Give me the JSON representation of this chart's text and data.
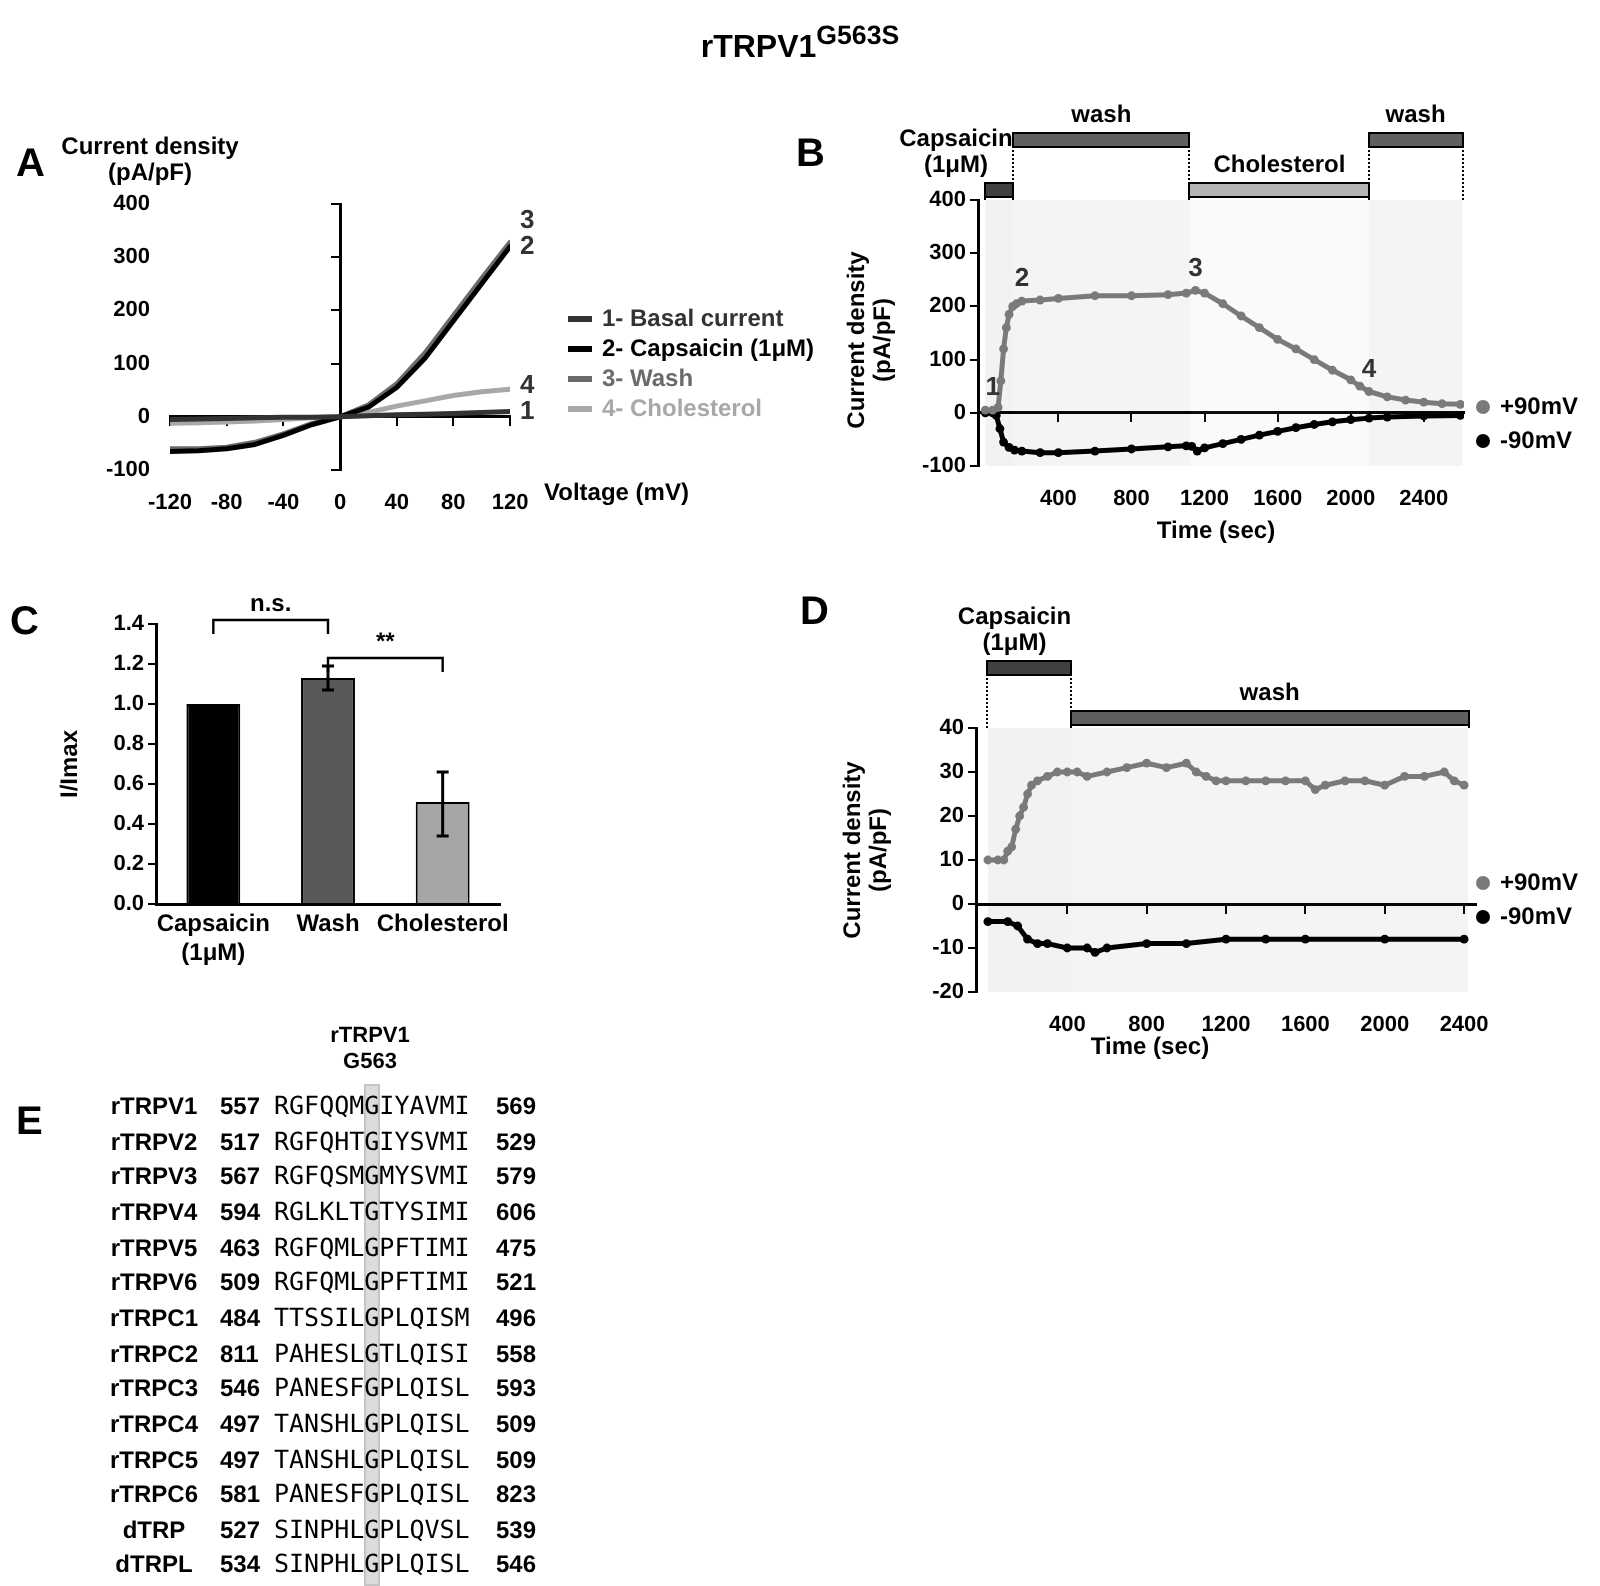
{
  "chart_data": [
    {
      "type": "other",
      "title": "rTRPV1$^{G563S}$"
    },
    {
      "type": "line",
      "xlabel": "Voltage (mV)",
      "ylabel": "Current density (pA/pF)",
      "x": [
        -120,
        -100,
        -80,
        -60,
        -40,
        -20,
        0,
        20,
        40,
        60,
        80,
        100,
        120
      ],
      "series": [
        {
          "name": "1- Basal current",
          "color": "#333333",
          "values": [
            -5,
            -4,
            -3,
            -2,
            -1,
            -1,
            0,
            2,
            4,
            5,
            6,
            8,
            10
          ]
        },
        {
          "name": "2- Capsaicin (1μM)",
          "color": "#000000",
          "values": [
            -65,
            -64,
            -60,
            -52,
            -35,
            -15,
            0,
            18,
            55,
            110,
            180,
            250,
            320
          ]
        },
        {
          "name": "3- Wash",
          "color": "#6b6b6b",
          "values": [
            -60,
            -60,
            -57,
            -48,
            -32,
            -13,
            0,
            22,
            62,
            120,
            190,
            260,
            328
          ]
        },
        {
          "name": "4- Cholesterol",
          "color": "#a8a8a8",
          "values": [
            -12,
            -11,
            -10,
            -8,
            -5,
            -2,
            0,
            8,
            20,
            30,
            40,
            47,
            52
          ]
        }
      ],
      "xlim": [
        -120,
        120
      ],
      "xticks": [
        -120,
        -80,
        -40,
        0,
        40,
        80,
        120
      ],
      "ylim": [
        -100,
        400
      ],
      "yticks": [
        -100,
        0,
        100,
        200,
        300,
        400
      ],
      "legend": "right",
      "marker": "none",
      "line_style": "solid",
      "annotations": [
        "A",
        {
          "text": "3",
          "x": 120,
          "y": 328
        },
        {
          "text": "2",
          "x": 120,
          "y": 320
        },
        {
          "text": "4",
          "x": 120,
          "y": 52
        },
        {
          "text": "1",
          "x": 120,
          "y": 10
        }
      ]
    },
    {
      "type": "line",
      "xlabel": "Time (sec)",
      "ylabel": "Current density (pA/pF)",
      "series": [
        {
          "name": "+90mV",
          "color": "#7a7a7a",
          "x": [
            0,
            40,
            70,
            85,
            100,
            115,
            130,
            150,
            170,
            200,
            300,
            400,
            600,
            800,
            1000,
            1100,
            1150,
            1200,
            1300,
            1400,
            1500,
            1600,
            1700,
            1800,
            1900,
            2000,
            2050,
            2100,
            2200,
            2300,
            2400,
            2500,
            2600
          ],
          "values": [
            5,
            5,
            10,
            60,
            120,
            160,
            185,
            200,
            205,
            210,
            212,
            215,
            220,
            220,
            222,
            225,
            230,
            225,
            205,
            182,
            160,
            138,
            120,
            100,
            80,
            62,
            50,
            40,
            30,
            24,
            20,
            17,
            16
          ]
        },
        {
          "name": "-90mV",
          "color": "#000000",
          "x": [
            0,
            40,
            60,
            80,
            100,
            130,
            160,
            200,
            300,
            400,
            600,
            800,
            1000,
            1100,
            1130,
            1160,
            1200,
            1300,
            1400,
            1500,
            1600,
            1700,
            1800,
            1900,
            2000,
            2100,
            2200,
            2400,
            2600
          ],
          "values": [
            0,
            0,
            -5,
            -30,
            -55,
            -65,
            -70,
            -72,
            -75,
            -75,
            -72,
            -68,
            -64,
            -62,
            -63,
            -72,
            -66,
            -58,
            -50,
            -42,
            -35,
            -28,
            -22,
            -17,
            -13,
            -10,
            -8,
            -6,
            -5
          ]
        }
      ],
      "xlim": [
        -40,
        2620
      ],
      "xticks": [
        400,
        800,
        1200,
        1600,
        2000,
        2400
      ],
      "ylim": [
        -100,
        400
      ],
      "yticks": [
        -100,
        0,
        100,
        200,
        300,
        400
      ],
      "legend": "right",
      "marker": "circle",
      "line_style": "solid",
      "bands": [
        {
          "axis": "x",
          "from": 0,
          "to": 150,
          "label": "Capsaicin (1μM)",
          "color": "#404040"
        },
        {
          "axis": "x",
          "from": 150,
          "to": 1120,
          "label": "wash",
          "color": "#5f5f5f"
        },
        {
          "axis": "x",
          "from": 1120,
          "to": 2100,
          "label": "Cholesterol",
          "color": "#b3b3b3"
        },
        {
          "axis": "x",
          "from": 2100,
          "to": 2610,
          "label": "wash",
          "color": "#5f5f5f"
        }
      ],
      "annotations": [
        "B",
        {
          "text": "1",
          "x": 40,
          "y": 5
        },
        {
          "text": "2",
          "x": 200,
          "y": 210
        },
        {
          "text": "3",
          "x": 1150,
          "y": 230
        },
        {
          "text": "4",
          "x": 2100,
          "y": 40
        }
      ]
    },
    {
      "type": "bar",
      "ylabel": "I/Imax",
      "categories": [
        "Capsaicin (1μM)",
        "Wash",
        "Cholesterol"
      ],
      "values": [
        1.0,
        1.13,
        0.51
      ],
      "colors": [
        "#000000",
        "#595959",
        "#a6a6a6"
      ],
      "errors": [
        null,
        0.06,
        [
          0.34,
          0.66
        ]
      ],
      "ylim": [
        0,
        1.4
      ],
      "yticks": [
        {
          "value": 0,
          "label": "0.0"
        },
        {
          "value": 0.2,
          "label": "0.2"
        },
        {
          "value": 0.4,
          "label": "0.4"
        },
        {
          "value": 0.6,
          "label": "0.6"
        },
        {
          "value": 0.8,
          "label": "0.8"
        },
        {
          "value": 1,
          "label": "1.0"
        },
        {
          "value": 1.2,
          "label": "1.2"
        },
        {
          "value": 1.4,
          "label": "1.4"
        }
      ],
      "annotations": [
        "C",
        "n.s.",
        "**"
      ]
    },
    {
      "type": "line",
      "xlabel": "Time (sec)",
      "ylabel": "Current density (pA/pF)",
      "series": [
        {
          "name": "+90mV",
          "color": "#7a7a7a",
          "x": [
            0,
            50,
            80,
            100,
            120,
            140,
            160,
            180,
            200,
            220,
            250,
            300,
            350,
            400,
            450,
            500,
            600,
            700,
            800,
            900,
            1000,
            1050,
            1100,
            1150,
            1200,
            1300,
            1400,
            1500,
            1600,
            1650,
            1700,
            1800,
            1900,
            2000,
            2100,
            2200,
            2300,
            2350,
            2400
          ],
          "values": [
            10,
            10,
            10,
            12,
            13,
            17,
            20,
            22,
            25,
            27,
            28,
            29,
            30,
            30,
            30,
            29,
            30,
            31,
            32,
            31,
            32,
            30,
            29,
            28,
            28,
            28,
            28,
            28,
            28,
            26,
            27,
            28,
            28,
            27,
            29,
            29,
            30,
            28,
            27
          ]
        },
        {
          "name": "-90mV",
          "color": "#000000",
          "x": [
            0,
            100,
            150,
            200,
            250,
            300,
            400,
            500,
            540,
            600,
            800,
            1000,
            1200,
            1400,
            1600,
            2000,
            2400
          ],
          "values": [
            -4,
            -4,
            -5,
            -8,
            -9,
            -9,
            -10,
            -10,
            -11,
            -10,
            -9,
            -9,
            -8,
            -8,
            -8,
            -8,
            -8
          ]
        }
      ],
      "xlim": [
        -60,
        2460
      ],
      "xticks": [
        400,
        800,
        1200,
        1600,
        2000,
        2400
      ],
      "ylim": [
        -20,
        40
      ],
      "yticks": [
        -20,
        -10,
        0,
        10,
        20,
        30,
        40
      ],
      "legend": "right",
      "marker": "circle",
      "line_style": "solid",
      "bands": [
        {
          "axis": "x",
          "from": 0,
          "to": 420,
          "label": "Capsaicin (1μM)",
          "color": "#404040"
        },
        {
          "axis": "x",
          "from": 420,
          "to": 2420,
          "label": "wash",
          "color": "#5f5f5f"
        }
      ],
      "annotations": [
        "D"
      ]
    },
    {
      "type": "other",
      "title": "rTRPV1 G563",
      "categories": [
        "rTRPV1",
        "rTRPV2",
        "rTRPV3",
        "rTRPV4",
        "rTRPV5",
        "rTRPV6",
        "rTRPC1",
        "rTRPC2",
        "rTRPC3",
        "rTRPC4",
        "rTRPC5",
        "rTRPC6",
        "dTRP",
        "dTRPL"
      ],
      "annotations": [
        "E",
        "557 RGFQQMGIYAVMI 569",
        "517 RGFQHTGIYSVMI 529",
        "567 RGFQSMGMYSVMI 579",
        "594 RGLKLTGTYSIMI 606",
        "463 RGFQMLGPFTIMI 475",
        "509 RGFQMLGPFTIMI 521",
        "484 TTSSILGPLQISM 496",
        "811 PAHESLGTLQISI 558",
        "546 PANESFGPLQISL 593",
        "497 TANSHLGPLQISL 509",
        "497 TANSHLGPLQISL 509",
        "581 PANESFGPLQISL 823",
        "527 SINPHLGPLQVSL 539",
        "534 SINPHLGPLQISL 546"
      ]
    }
  ]
}
